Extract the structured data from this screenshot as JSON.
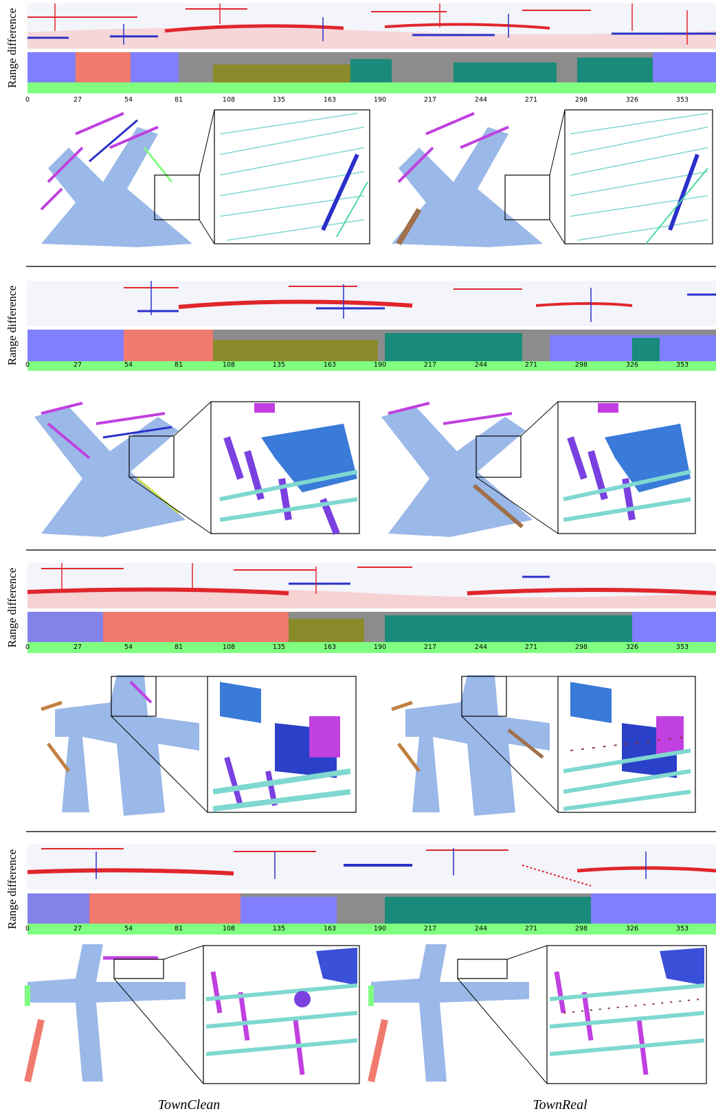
{
  "figure": {
    "row_label": "Range difference",
    "tick_labels": [
      "0",
      "27",
      "54",
      "81",
      "108",
      "135",
      "163",
      "190",
      "217",
      "244",
      "271",
      "298",
      "326",
      "353"
    ],
    "captions": [
      "TownClean",
      "TownReal"
    ],
    "colors": {
      "background": "#ffffff",
      "diff_red": "#e0262c",
      "diff_blue": "#2a30c8",
      "sky_gray": "#8c8c8c",
      "ground_green": "#80ff80",
      "wall_salmon": "#f07a6e",
      "wall_violet": "#8080ff",
      "olive": "#8a8a2a",
      "teal": "#1a8a7a",
      "road_blue": "#9ab8e8",
      "zoom_teal": "#7fd8d0",
      "magenta": "#c040e0",
      "divider": "#555555"
    },
    "groups": [
      {
        "id": "group-1"
      },
      {
        "id": "group-2"
      },
      {
        "id": "group-3"
      },
      {
        "id": "group-4"
      }
    ]
  }
}
